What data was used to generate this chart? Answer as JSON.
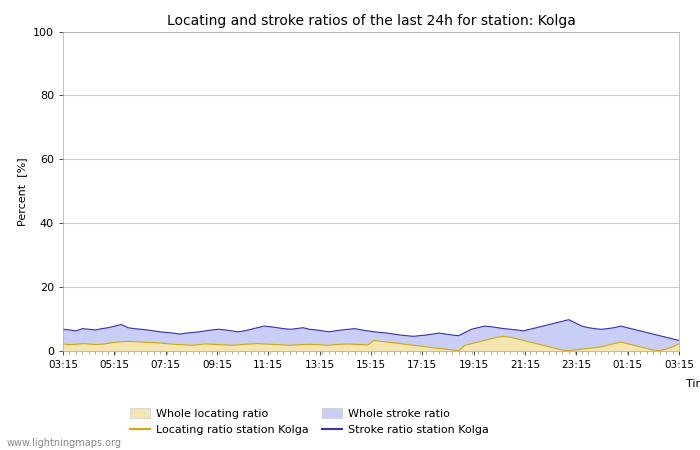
{
  "title": "Locating and stroke ratios of the last 24h for station: Kolga",
  "xlabel": "Time",
  "ylabel": "Percent  [%]",
  "ylim": [
    0,
    100
  ],
  "yticks": [
    0,
    20,
    40,
    60,
    80,
    100
  ],
  "xtick_labels": [
    "03:15",
    "05:15",
    "07:15",
    "09:15",
    "11:15",
    "13:15",
    "15:15",
    "17:15",
    "19:15",
    "21:15",
    "23:15",
    "01:15",
    "03:15"
  ],
  "background_color": "#ffffff",
  "plot_bg_color": "#ffffff",
  "grid_color": "#cccccc",
  "watermark": "www.lightningmaps.org",
  "whole_locating_color": "#f5e6b0",
  "whole_stroke_color": "#c8cef5",
  "locating_line_color": "#d4a800",
  "stroke_line_color": "#3333bb",
  "whole_locating_values": [
    2.5,
    2.3,
    2.2,
    2.4,
    2.3,
    2.1,
    2.2,
    2.5,
    2.8,
    3.0,
    3.2,
    3.1,
    3.0,
    2.9,
    2.8,
    2.7,
    2.5,
    2.3,
    2.2,
    2.1,
    2.0,
    2.2,
    2.4,
    2.3,
    2.2,
    2.1,
    2.0,
    2.1,
    2.3,
    2.4,
    2.5,
    2.4,
    2.3,
    2.2,
    2.1,
    2.0,
    2.1,
    2.2,
    2.3,
    2.2,
    2.1,
    2.0,
    2.2,
    2.3,
    2.4,
    2.3,
    2.2,
    2.1,
    3.5,
    3.2,
    3.0,
    2.8,
    2.5,
    2.2,
    2.0,
    1.8,
    1.5,
    1.2,
    1.0,
    0.8,
    0.5,
    0.3,
    2.0,
    2.5,
    3.0,
    3.5,
    4.0,
    4.5,
    4.8,
    4.5,
    4.0,
    3.5,
    3.0,
    2.5,
    2.0,
    1.5,
    1.0,
    0.5,
    0.3,
    0.5,
    0.8,
    1.0,
    1.2,
    1.5,
    2.0,
    2.5,
    3.0,
    2.5,
    2.0,
    1.5,
    1.0,
    0.5,
    0.3,
    0.8,
    1.5,
    2.5
  ],
  "whole_stroke_values": [
    7.0,
    6.8,
    6.5,
    7.2,
    7.0,
    6.8,
    7.2,
    7.5,
    8.0,
    8.5,
    7.5,
    7.2,
    7.0,
    6.8,
    6.5,
    6.2,
    6.0,
    5.8,
    5.5,
    5.8,
    6.0,
    6.2,
    6.5,
    6.8,
    7.0,
    6.8,
    6.5,
    6.2,
    6.5,
    7.0,
    7.5,
    8.0,
    7.8,
    7.5,
    7.2,
    7.0,
    7.2,
    7.5,
    7.0,
    6.8,
    6.5,
    6.2,
    6.5,
    6.8,
    7.0,
    7.2,
    6.8,
    6.5,
    6.2,
    6.0,
    5.8,
    5.5,
    5.2,
    5.0,
    4.8,
    5.0,
    5.2,
    5.5,
    5.8,
    5.5,
    5.2,
    5.0,
    6.0,
    7.0,
    7.5,
    8.0,
    7.8,
    7.5,
    7.2,
    7.0,
    6.8,
    6.5,
    7.0,
    7.5,
    8.0,
    8.5,
    9.0,
    9.5,
    10.0,
    9.0,
    8.0,
    7.5,
    7.2,
    7.0,
    7.2,
    7.5,
    8.0,
    7.5,
    7.0,
    6.5,
    6.0,
    5.5,
    5.0,
    4.5,
    4.0,
    3.5
  ],
  "locating_line_values": [
    2.2,
    2.0,
    2.1,
    2.3,
    2.2,
    2.0,
    2.1,
    2.4,
    2.7,
    2.9,
    3.0,
    2.9,
    2.8,
    2.7,
    2.6,
    2.5,
    2.3,
    2.1,
    2.0,
    1.9,
    1.8,
    2.0,
    2.2,
    2.1,
    2.0,
    1.9,
    1.8,
    1.9,
    2.1,
    2.2,
    2.3,
    2.2,
    2.1,
    2.0,
    1.9,
    1.8,
    1.9,
    2.0,
    2.1,
    2.0,
    1.9,
    1.8,
    2.0,
    2.1,
    2.2,
    2.1,
    2.0,
    1.9,
    3.3,
    3.0,
    2.8,
    2.6,
    2.3,
    2.0,
    1.8,
    1.6,
    1.3,
    1.0,
    0.8,
    0.6,
    0.3,
    0.1,
    1.8,
    2.3,
    2.8,
    3.3,
    3.8,
    4.3,
    4.6,
    4.3,
    3.8,
    3.3,
    2.8,
    2.3,
    1.8,
    1.3,
    0.8,
    0.3,
    0.1,
    0.3,
    0.6,
    0.8,
    1.0,
    1.3,
    1.8,
    2.3,
    2.8,
    2.3,
    1.8,
    1.3,
    0.8,
    0.3,
    0.1,
    0.6,
    1.3,
    2.3
  ],
  "stroke_line_values": [
    6.8,
    6.6,
    6.3,
    7.0,
    6.8,
    6.6,
    7.0,
    7.3,
    7.8,
    8.3,
    7.3,
    7.0,
    6.8,
    6.6,
    6.3,
    6.0,
    5.8,
    5.6,
    5.3,
    5.6,
    5.8,
    6.0,
    6.3,
    6.6,
    6.8,
    6.6,
    6.3,
    6.0,
    6.3,
    6.8,
    7.3,
    7.8,
    7.6,
    7.3,
    7.0,
    6.8,
    7.0,
    7.3,
    6.8,
    6.6,
    6.3,
    6.0,
    6.3,
    6.6,
    6.8,
    7.0,
    6.6,
    6.3,
    6.0,
    5.8,
    5.6,
    5.3,
    5.0,
    4.8,
    4.6,
    4.8,
    5.0,
    5.3,
    5.6,
    5.3,
    5.0,
    4.8,
    5.8,
    6.8,
    7.3,
    7.8,
    7.6,
    7.3,
    7.0,
    6.8,
    6.6,
    6.3,
    6.8,
    7.3,
    7.8,
    8.3,
    8.8,
    9.3,
    9.8,
    8.8,
    7.8,
    7.3,
    7.0,
    6.8,
    7.0,
    7.3,
    7.8,
    7.3,
    6.8,
    6.3,
    5.8,
    5.3,
    4.8,
    4.3,
    3.8,
    3.3
  ]
}
